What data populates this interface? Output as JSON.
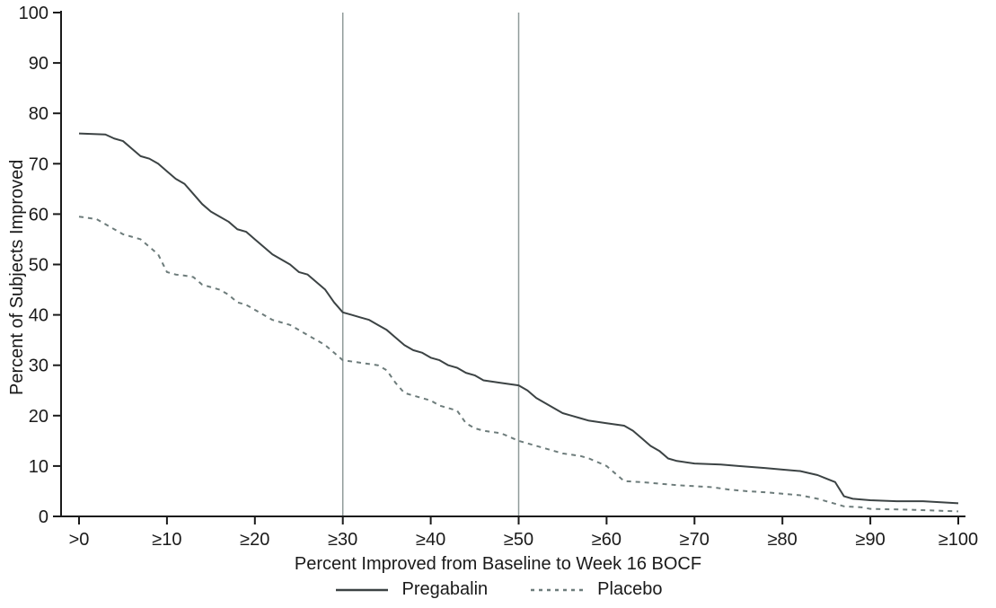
{
  "figure": {
    "background": "#ffffff"
  },
  "chart_data": {
    "type": "line",
    "title": "",
    "xlabel": "Percent Improved from Baseline to Week 16 BOCF",
    "ylabel": "Percent of Subjects Improved",
    "xlim": [
      0,
      100
    ],
    "ylim": [
      0,
      100
    ],
    "grid": false,
    "legend_position": "bottom",
    "axis_color": "#1a1a1a",
    "y_ticks": [
      0,
      10,
      20,
      30,
      40,
      50,
      60,
      70,
      80,
      90,
      100
    ],
    "x_ticks": [
      {
        "value": 0,
        "label": ">0"
      },
      {
        "value": 10,
        "label": "≥10"
      },
      {
        "value": 20,
        "label": "≥20"
      },
      {
        "value": 30,
        "label": "≥30"
      },
      {
        "value": 40,
        "label": "≥40"
      },
      {
        "value": 50,
        "label": "≥50"
      },
      {
        "value": 60,
        "label": "≥60"
      },
      {
        "value": 70,
        "label": "≥70"
      },
      {
        "value": 80,
        "label": "≥80"
      },
      {
        "value": 90,
        "label": "≥90"
      },
      {
        "value": 100,
        "label": "≥100"
      }
    ],
    "reference_lines": {
      "x_values": [
        30,
        50
      ],
      "color": "#8f9a99",
      "width": 1.5
    },
    "series": [
      {
        "name": "Pregabalin",
        "line_style": "solid",
        "color": "#3c4344",
        "width": 2,
        "dash": "",
        "points": [
          [
            0,
            76
          ],
          [
            3,
            75.8
          ],
          [
            4,
            75
          ],
          [
            5,
            74.5
          ],
          [
            6,
            73
          ],
          [
            7,
            71.5
          ],
          [
            8,
            71
          ],
          [
            9,
            70
          ],
          [
            10,
            68.5
          ],
          [
            11,
            67
          ],
          [
            12,
            66
          ],
          [
            13,
            64
          ],
          [
            14,
            62
          ],
          [
            15,
            60.5
          ],
          [
            16,
            59.5
          ],
          [
            17,
            58.5
          ],
          [
            18,
            57
          ],
          [
            19,
            56.5
          ],
          [
            20,
            55
          ],
          [
            21,
            53.5
          ],
          [
            22,
            52
          ],
          [
            23,
            51
          ],
          [
            24,
            50
          ],
          [
            25,
            48.5
          ],
          [
            26,
            48
          ],
          [
            27,
            46.5
          ],
          [
            28,
            45
          ],
          [
            29,
            42.5
          ],
          [
            30,
            40.5
          ],
          [
            31,
            40
          ],
          [
            32,
            39.5
          ],
          [
            33,
            39
          ],
          [
            34,
            38
          ],
          [
            35,
            37
          ],
          [
            36,
            35.5
          ],
          [
            37,
            34
          ],
          [
            38,
            33
          ],
          [
            39,
            32.5
          ],
          [
            40,
            31.5
          ],
          [
            41,
            31
          ],
          [
            42,
            30
          ],
          [
            43,
            29.5
          ],
          [
            44,
            28.5
          ],
          [
            45,
            28
          ],
          [
            46,
            27
          ],
          [
            48,
            26.5
          ],
          [
            50,
            26
          ],
          [
            51,
            25
          ],
          [
            52,
            23.5
          ],
          [
            53,
            22.5
          ],
          [
            54,
            21.5
          ],
          [
            55,
            20.5
          ],
          [
            56,
            20
          ],
          [
            57,
            19.5
          ],
          [
            58,
            19
          ],
          [
            60,
            18.5
          ],
          [
            62,
            18
          ],
          [
            63,
            17
          ],
          [
            64,
            15.5
          ],
          [
            65,
            14
          ],
          [
            66,
            13
          ],
          [
            67,
            11.5
          ],
          [
            68,
            11
          ],
          [
            70,
            10.5
          ],
          [
            73,
            10.3
          ],
          [
            75,
            10
          ],
          [
            78,
            9.6
          ],
          [
            80,
            9.3
          ],
          [
            82,
            9
          ],
          [
            84,
            8.2
          ],
          [
            85,
            7.5
          ],
          [
            86,
            6.8
          ],
          [
            87,
            4
          ],
          [
            88,
            3.5
          ],
          [
            90,
            3.2
          ],
          [
            93,
            3
          ],
          [
            96,
            3
          ],
          [
            100,
            2.6
          ]
        ]
      },
      {
        "name": "Placebo",
        "line_style": "dashed",
        "color": "#6d7c7b",
        "width": 2,
        "dash": "5 5",
        "points": [
          [
            0,
            59.5
          ],
          [
            2,
            59
          ],
          [
            3,
            58
          ],
          [
            4,
            57
          ],
          [
            5,
            56
          ],
          [
            6,
            55.5
          ],
          [
            7,
            55
          ],
          [
            8,
            53.5
          ],
          [
            9,
            52
          ],
          [
            10,
            48.5
          ],
          [
            11,
            48
          ],
          [
            12,
            47.8
          ],
          [
            13,
            47.5
          ],
          [
            14,
            46
          ],
          [
            15,
            45.5
          ],
          [
            16,
            45
          ],
          [
            17,
            44
          ],
          [
            18,
            42.5
          ],
          [
            19,
            42
          ],
          [
            20,
            41
          ],
          [
            21,
            40
          ],
          [
            22,
            39
          ],
          [
            23,
            38.5
          ],
          [
            24,
            38
          ],
          [
            25,
            37
          ],
          [
            26,
            36
          ],
          [
            27,
            35
          ],
          [
            28,
            34
          ],
          [
            29,
            32.5
          ],
          [
            30,
            31
          ],
          [
            32,
            30.5
          ],
          [
            34,
            30
          ],
          [
            35,
            29
          ],
          [
            36,
            26.5
          ],
          [
            37,
            24.5
          ],
          [
            38,
            24
          ],
          [
            39,
            23.5
          ],
          [
            40,
            23
          ],
          [
            41,
            22
          ],
          [
            42,
            21.5
          ],
          [
            43,
            21
          ],
          [
            44,
            18.5
          ],
          [
            45,
            17.5
          ],
          [
            46,
            17
          ],
          [
            48,
            16.5
          ],
          [
            50,
            15
          ],
          [
            52,
            14
          ],
          [
            54,
            13
          ],
          [
            55,
            12.5
          ],
          [
            57,
            12
          ],
          [
            58,
            11.5
          ],
          [
            60,
            10
          ],
          [
            61,
            8.5
          ],
          [
            62,
            7
          ],
          [
            64,
            6.8
          ],
          [
            66,
            6.5
          ],
          [
            68,
            6.2
          ],
          [
            70,
            6
          ],
          [
            72,
            5.8
          ],
          [
            74,
            5.3
          ],
          [
            76,
            5
          ],
          [
            78,
            4.8
          ],
          [
            80,
            4.5
          ],
          [
            82,
            4.2
          ],
          [
            84,
            3.5
          ],
          [
            85,
            3
          ],
          [
            86,
            2.5
          ],
          [
            87,
            2
          ],
          [
            89,
            1.8
          ],
          [
            90,
            1.5
          ],
          [
            95,
            1.3
          ],
          [
            100,
            1
          ]
        ]
      }
    ]
  }
}
